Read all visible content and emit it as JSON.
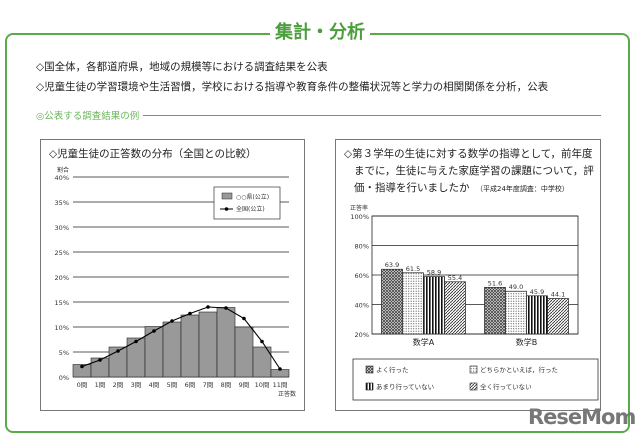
{
  "header": {
    "title": "集計・分析"
  },
  "bullets": [
    "◇国全体，各都道府県，地域の規模等における調査結果を公表",
    "◇児童生徒の学習環境や生活習慣，学校における指導や教育条件の整備状況等と学力の相関関係を分析，公表"
  ],
  "section": {
    "label": "◎公表する調査結果の例"
  },
  "left_panel": {
    "title": "◇児童生徒の正答数の分布（全国との比較）"
  },
  "right_panel": {
    "title_lines": [
      "◇第３学年の生徒に対する数学の指導として，前年度",
      "までに，生徒に与えた家庭学習の課題について，評",
      "価・指導を行いましたか"
    ],
    "note": "（平成24年度調査：中学校）"
  },
  "logo": "ReseMom",
  "chart_data": [
    {
      "type": "bar",
      "ylabel": "割合",
      "xlabel": "正答数",
      "categories": [
        "0問",
        "1問",
        "2問",
        "3問",
        "4問",
        "5問",
        "6問",
        "7問",
        "8問",
        "9問",
        "10問",
        "11問"
      ],
      "yticks": [
        "0%",
        "5%",
        "10%",
        "15%",
        "20%",
        "25%",
        "30%",
        "35%",
        "40%"
      ],
      "ylim": [
        0,
        40
      ],
      "grid": true,
      "legend": "top-right",
      "series": [
        {
          "name": "○○県(公立)",
          "type": "bar",
          "color": "#999999",
          "values": [
            2.5,
            3.8,
            6.0,
            7.8,
            10.1,
            11.0,
            12.4,
            13.0,
            13.9,
            10.0,
            6.0,
            1.5
          ]
        },
        {
          "name": "全国(公立)",
          "type": "line",
          "color": "#000000",
          "values": [
            2.1,
            3.4,
            5.2,
            7.1,
            9.2,
            11.2,
            12.7,
            14.0,
            13.8,
            11.7,
            7.1,
            1.6
          ]
        }
      ]
    },
    {
      "type": "bar",
      "ylabel": "正答率",
      "categories": [
        "数学A",
        "数学B"
      ],
      "yticks": [
        "20%",
        "40%",
        "60%",
        "80%",
        "100%"
      ],
      "ylim": [
        20,
        100
      ],
      "grid": true,
      "legend": "bottom",
      "series": [
        {
          "name": "よく行った",
          "pattern": "cross",
          "values": [
            63.9,
            51.6
          ],
          "labels": [
            "63.9",
            "51.6"
          ]
        },
        {
          "name": "どちらかといえば，行った",
          "pattern": "dots",
          "values": [
            61.5,
            49.0
          ],
          "labels": [
            "61.5",
            "49.0"
          ]
        },
        {
          "name": "あまり行っていない",
          "pattern": "vstripe",
          "values": [
            58.9,
            45.9
          ],
          "labels": [
            "58.9",
            "45.9"
          ]
        },
        {
          "name": "全く行っていない",
          "pattern": "diag",
          "values": [
            55.4,
            44.1
          ],
          "labels": [
            "55.4",
            "44.1"
          ]
        }
      ]
    }
  ]
}
